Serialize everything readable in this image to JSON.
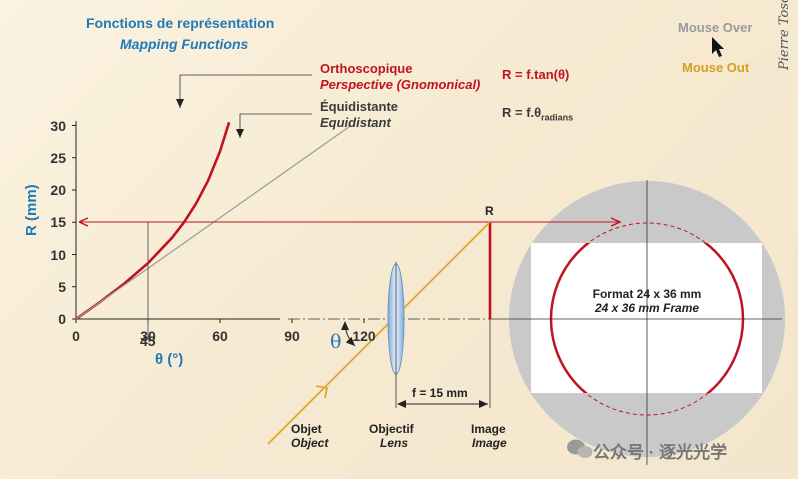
{
  "title": {
    "fr": "Fonctions de représentation",
    "en": "Mapping Functions"
  },
  "buttons": {
    "mouse_over": "Mouse Over",
    "mouse_out": "Mouse Out"
  },
  "signature": "Pierre Toscani",
  "legend": {
    "ortho_fr": "Orthoscopique",
    "ortho_en": "Perspective (Gnomonical)",
    "ortho_formula": "R = f.tan(θ)",
    "equi_fr": "Équidistante",
    "equi_en": "Equidistant",
    "equi_formula": "R = f.θ",
    "equi_formula_sub": "radians"
  },
  "graph": {
    "y_label": "R (mm)",
    "x_label": "θ (°)",
    "y_ticks": [
      "0",
      "5",
      "10",
      "15",
      "20",
      "25",
      "30"
    ],
    "x_ticks": [
      "0",
      "30",
      "60",
      "90",
      "120"
    ],
    "x_marker": "45"
  },
  "optics": {
    "theta": "θ",
    "r_marker": "R",
    "focal": "f = 15 mm",
    "object_fr": "Objet",
    "object_en": "Object",
    "lens_fr": "Objectif",
    "lens_en": "Lens",
    "image_fr": "Image",
    "image_en": "Image",
    "frame_fr": "Format 24 x 36 mm",
    "frame_en": "24 x 36 mm Frame"
  },
  "watermark": "公众号 · 逐光光学",
  "chart_data": {
    "type": "line",
    "xlabel": "θ (°)",
    "ylabel": "R (mm)",
    "xlim": [
      0,
      125
    ],
    "ylim": [
      0,
      30
    ],
    "x_ticks": [
      0,
      30,
      60,
      90,
      120
    ],
    "y_ticks": [
      0,
      5,
      10,
      15,
      20,
      25,
      30
    ],
    "series": [
      {
        "name": "Orthoscopique / Perspective (Gnomonical)",
        "formula": "R = f.tan(θ)",
        "color": "#c1121f",
        "x": [
          0,
          10,
          20,
          30,
          40,
          45,
          50,
          55,
          60,
          63.8
        ],
        "y": [
          0,
          2.64,
          5.46,
          8.66,
          12.59,
          15.0,
          17.88,
          21.42,
          25.98,
          30.5
        ]
      },
      {
        "name": "Équidistante / Equidistant",
        "formula": "R = f.θ",
        "color": "#9a9a9a",
        "x": [
          0,
          30,
          60,
          90,
          114.6
        ],
        "y": [
          0,
          7.85,
          15.71,
          23.56,
          30.0
        ]
      }
    ],
    "annotations": [
      {
        "x": 45,
        "y": 15
      }
    ]
  }
}
